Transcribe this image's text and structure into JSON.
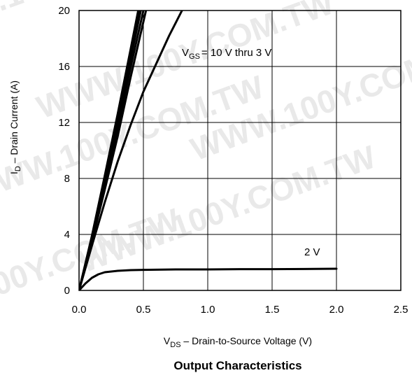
{
  "chart_data": {
    "type": "line",
    "title": "Output Characteristics",
    "xlabel": {
      "main": "V",
      "subscript": "DS",
      "rest": " – Drain-to-Source Voltage (V)"
    },
    "ylabel": {
      "main": "I",
      "subscript": "D",
      "rest": " – Drain Current (A)"
    },
    "xlim": [
      0,
      2.5
    ],
    "ylim": [
      0,
      20
    ],
    "xticks": [
      "0.0",
      "0.5",
      "1.0",
      "1.5",
      "2.0",
      "2.5"
    ],
    "yticks": [
      "0",
      "4",
      "8",
      "12",
      "16",
      "20"
    ],
    "grid": true,
    "line_color": "#000000",
    "series": [
      {
        "x": [
          0,
          0.1,
          0.2,
          0.3,
          0.4,
          0.46
        ],
        "y": [
          0,
          3.9,
          8.2,
          12.6,
          17.2,
          20
        ]
      },
      {
        "x": [
          0,
          0.1,
          0.2,
          0.3,
          0.4,
          0.47
        ],
        "y": [
          0,
          3.8,
          8.0,
          12.3,
          16.9,
          20
        ]
      },
      {
        "x": [
          0,
          0.1,
          0.2,
          0.3,
          0.4,
          0.48
        ],
        "y": [
          0,
          3.7,
          7.8,
          12.0,
          16.5,
          20
        ]
      },
      {
        "x": [
          0,
          0.1,
          0.2,
          0.3,
          0.4,
          0.5
        ],
        "y": [
          0,
          3.6,
          7.5,
          11.6,
          15.9,
          20
        ]
      },
      {
        "x": [
          0,
          0.1,
          0.2,
          0.3,
          0.4,
          0.52
        ],
        "y": [
          0,
          3.5,
          7.2,
          11.0,
          15.2,
          20
        ]
      },
      {
        "x": [
          0,
          0.1,
          0.2,
          0.3,
          0.4,
          0.5,
          0.6,
          0.7,
          0.8
        ],
        "y": [
          0,
          3.2,
          6.3,
          9.2,
          11.8,
          14.2,
          16.2,
          18.2,
          20
        ]
      },
      {
        "x": [
          0,
          0.05,
          0.1,
          0.15,
          0.2,
          0.3,
          0.4,
          0.5,
          0.75,
          1.0,
          1.25,
          1.5,
          1.75,
          2.0
        ],
        "y": [
          0,
          0.5,
          0.9,
          1.15,
          1.3,
          1.4,
          1.45,
          1.47,
          1.5,
          1.5,
          1.52,
          1.52,
          1.53,
          1.55
        ]
      }
    ],
    "annotations": [
      {
        "text": "= 10 V thru 3 V",
        "main": "V",
        "subscript": "GS",
        "x": 0.8,
        "y": 17.0
      },
      {
        "text": "2 V",
        "x": 1.75,
        "y": 2.3
      }
    ]
  },
  "watermark": "WWW.100Y.COM.TW"
}
